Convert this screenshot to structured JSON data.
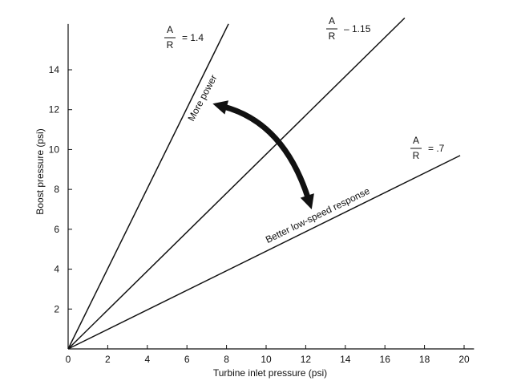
{
  "chart_data": {
    "type": "line",
    "title": "",
    "xlabel": "Turbine inlet pressure (psi)",
    "ylabel": "Boost pressure (psi)",
    "xlim": [
      0,
      20.5
    ],
    "ylim": [
      0,
      16.3
    ],
    "x_ticks": [
      0,
      2,
      4,
      6,
      8,
      10,
      12,
      14,
      16,
      18,
      20
    ],
    "y_ticks": [
      2,
      4,
      6,
      8,
      10,
      12,
      14
    ],
    "x_tick_labels": [
      "0",
      "2",
      "4",
      "6",
      "8",
      "10",
      "12",
      "14",
      "16",
      "18",
      "20"
    ],
    "y_tick_labels": [
      "2",
      "4",
      "6",
      "8",
      "10",
      "12",
      "14"
    ],
    "grid": false,
    "legend": "none",
    "line_color": "#111111",
    "series": [
      {
        "ratio_text": "= 1.4",
        "points": [
          [
            0,
            0
          ],
          [
            8.1,
            16.3
          ]
        ]
      },
      {
        "ratio_text": "– 1.15",
        "points": [
          [
            0,
            0
          ],
          [
            17,
            16.6
          ]
        ]
      },
      {
        "ratio_text": "= .7",
        "points": [
          [
            0,
            0
          ],
          [
            19.8,
            9.7
          ]
        ]
      }
    ],
    "ratio_symbol": {
      "numerator": "A",
      "denominator": "R"
    },
    "annotations": {
      "more_power": "More power",
      "better_response": "Better low-speed response"
    },
    "arrow": {
      "from": [
        7.3,
        12.3
      ],
      "to": [
        12.3,
        7.0
      ]
    }
  }
}
